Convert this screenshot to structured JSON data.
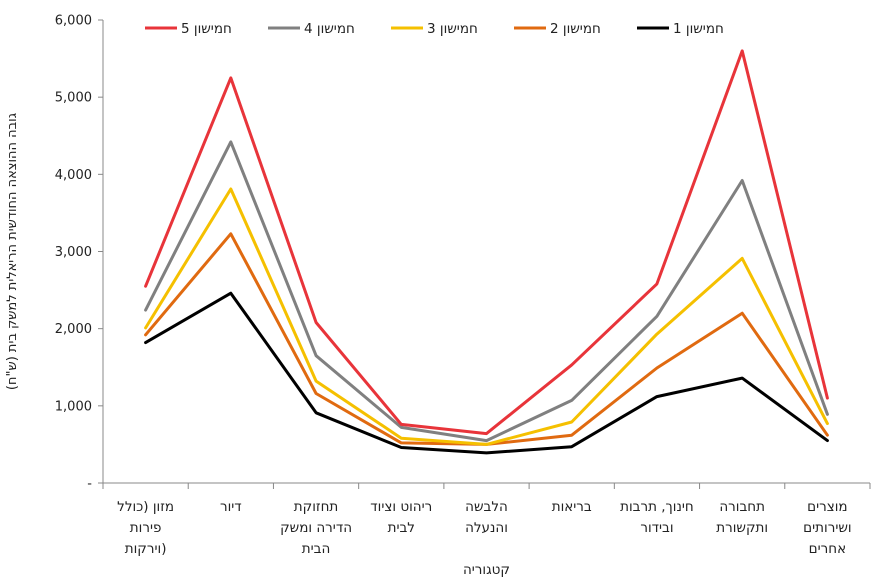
{
  "chart_data": {
    "type": "line",
    "xlabel": "קטגוריה",
    "ylabel": "גובה ההוצאה החודשית הריאלית למשק בית (ש\"ח)",
    "ylim": [
      0,
      6000
    ],
    "yticks": [
      {
        "value": 0,
        "label": "-"
      },
      {
        "value": 1000,
        "label": "1,000"
      },
      {
        "value": 2000,
        "label": "2,000"
      },
      {
        "value": 3000,
        "label": "3,000"
      },
      {
        "value": 4000,
        "label": "4,000"
      },
      {
        "value": 5000,
        "label": "5,000"
      },
      {
        "value": 6000,
        "label": "6,000"
      }
    ],
    "grid": false,
    "legend_position": "top",
    "categories": [
      [
        "מזון (כולל",
        "פירות",
        "וירקות)"
      ],
      [
        "דיור"
      ],
      [
        "תחזוקת",
        "הדירה ומשק",
        "הבית"
      ],
      [
        "ריהוט וציוד",
        "לבית"
      ],
      [
        "הלבשה",
        "והנעלה"
      ],
      [
        "בריאות"
      ],
      [
        "חינוך, תרבות",
        "ובידור"
      ],
      [
        "תחבורה",
        "ותקשורת"
      ],
      [
        "מוצרים",
        "ושירותים",
        "אחרים"
      ]
    ],
    "series": [
      {
        "name": "חמישון 5",
        "color": "#e8343a",
        "values": [
          2550,
          5250,
          2080,
          760,
          640,
          1530,
          2580,
          5600,
          1100
        ]
      },
      {
        "name": "חמישון 4",
        "color": "#808080",
        "values": [
          2240,
          4420,
          1650,
          720,
          550,
          1070,
          2160,
          3920,
          890
        ]
      },
      {
        "name": "חמישון 3",
        "color": "#f5c000",
        "values": [
          2010,
          3810,
          1320,
          580,
          500,
          790,
          1930,
          2910,
          770
        ]
      },
      {
        "name": "חמישון 2",
        "color": "#e06a10",
        "values": [
          1920,
          3230,
          1160,
          520,
          500,
          620,
          1490,
          2200,
          620
        ]
      },
      {
        "name": "חמישון 1",
        "color": "#000000",
        "values": [
          1820,
          2460,
          910,
          460,
          390,
          470,
          1120,
          1360,
          550
        ]
      }
    ]
  }
}
